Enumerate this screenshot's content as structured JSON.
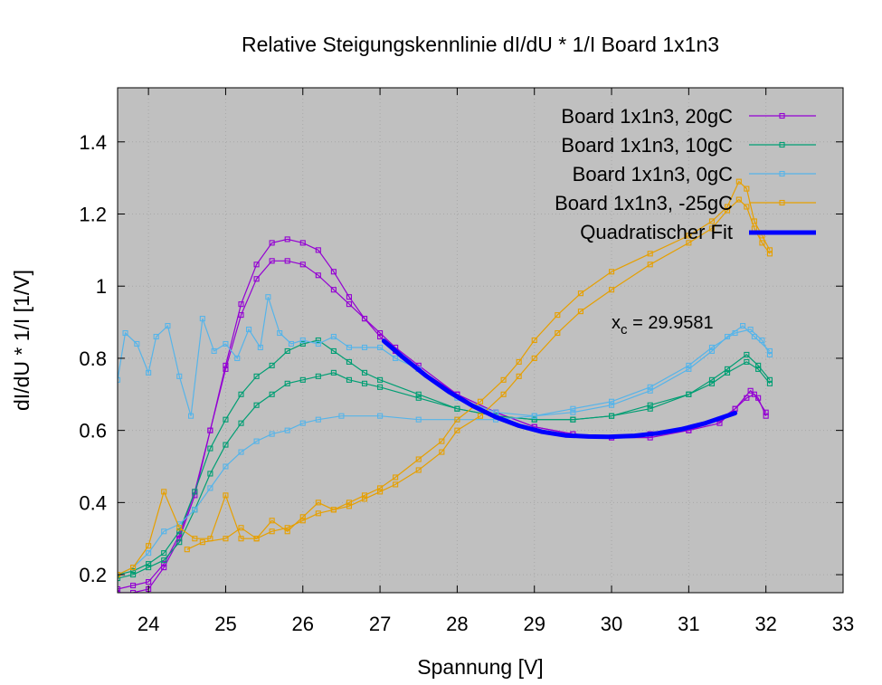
{
  "chart_data": {
    "type": "line",
    "title": "Relative Steigungskennlinie dI/dU * 1/I Board 1x1n3",
    "xlabel": "Spannung [V]",
    "ylabel": "dI/dU * 1/I [1/V]",
    "xlim": [
      23.6,
      33
    ],
    "ylim": [
      0.15,
      1.55
    ],
    "x_ticks": [
      "24",
      "25",
      "26",
      "27",
      "28",
      "29",
      "30",
      "31",
      "32",
      "33"
    ],
    "y_ticks": [
      "0.2",
      "0.4",
      "0.6",
      "0.8",
      "1",
      "1.2",
      "1.4"
    ],
    "grid": true,
    "legend_position": "top-right",
    "series": [
      {
        "name": "Board 1x1n3, 20gC",
        "color": "#9400d3",
        "marker": "square",
        "points": [
          [
            23.6,
            0.15
          ],
          [
            23.8,
            0.15
          ],
          [
            24.0,
            0.16
          ],
          [
            24.2,
            0.22
          ],
          [
            24.4,
            0.3
          ],
          [
            24.6,
            0.42
          ],
          [
            24.8,
            0.6
          ],
          [
            25.0,
            0.78
          ],
          [
            25.2,
            0.95
          ],
          [
            25.4,
            1.06
          ],
          [
            25.6,
            1.12
          ],
          [
            25.8,
            1.13
          ],
          [
            26.0,
            1.12
          ],
          [
            26.2,
            1.1
          ],
          [
            26.4,
            1.04
          ],
          [
            26.6,
            0.97
          ],
          [
            26.8,
            0.91
          ],
          [
            27.0,
            0.86
          ],
          [
            27.2,
            0.82
          ],
          [
            27.5,
            0.77
          ],
          [
            28.0,
            0.7
          ],
          [
            28.5,
            0.65
          ],
          [
            29.0,
            0.61
          ],
          [
            29.5,
            0.59
          ],
          [
            30.0,
            0.58
          ],
          [
            30.5,
            0.59
          ],
          [
            31.0,
            0.6
          ],
          [
            31.4,
            0.63
          ],
          [
            31.6,
            0.66
          ],
          [
            31.8,
            0.71
          ],
          [
            31.9,
            0.69
          ],
          [
            32.0,
            0.64
          ]
        ]
      },
      {
        "name": "Board 1x1n3, 20gC (2)",
        "color": "#9400d3",
        "marker": "square",
        "points": [
          [
            23.6,
            0.16
          ],
          [
            23.8,
            0.17
          ],
          [
            24.0,
            0.18
          ],
          [
            24.2,
            0.23
          ],
          [
            24.4,
            0.31
          ],
          [
            24.6,
            0.43
          ],
          [
            24.8,
            0.6
          ],
          [
            25.0,
            0.77
          ],
          [
            25.2,
            0.92
          ],
          [
            25.4,
            1.02
          ],
          [
            25.6,
            1.07
          ],
          [
            25.8,
            1.07
          ],
          [
            26.0,
            1.06
          ],
          [
            26.2,
            1.03
          ],
          [
            26.4,
            0.99
          ],
          [
            26.6,
            0.95
          ],
          [
            26.8,
            0.91
          ],
          [
            27.0,
            0.87
          ],
          [
            27.2,
            0.83
          ],
          [
            27.5,
            0.78
          ],
          [
            28.0,
            0.7
          ],
          [
            28.5,
            0.65
          ],
          [
            29.0,
            0.61
          ],
          [
            29.5,
            0.59
          ],
          [
            30.0,
            0.58
          ],
          [
            30.5,
            0.58
          ],
          [
            31.0,
            0.6
          ],
          [
            31.4,
            0.62
          ],
          [
            31.6,
            0.66
          ],
          [
            31.75,
            0.69
          ],
          [
            31.85,
            0.7
          ],
          [
            32.0,
            0.65
          ]
        ]
      },
      {
        "name": "Board 1x1n3, 10gC",
        "color": "#009e73",
        "marker": "square",
        "points": [
          [
            23.6,
            0.2
          ],
          [
            23.8,
            0.21
          ],
          [
            24.0,
            0.23
          ],
          [
            24.2,
            0.26
          ],
          [
            24.4,
            0.32
          ],
          [
            24.6,
            0.43
          ],
          [
            24.8,
            0.55
          ],
          [
            25.0,
            0.63
          ],
          [
            25.2,
            0.7
          ],
          [
            25.4,
            0.75
          ],
          [
            25.6,
            0.78
          ],
          [
            25.8,
            0.82
          ],
          [
            26.0,
            0.84
          ],
          [
            26.2,
            0.85
          ],
          [
            26.4,
            0.82
          ],
          [
            26.6,
            0.79
          ],
          [
            26.8,
            0.76
          ],
          [
            27.0,
            0.74
          ],
          [
            27.5,
            0.7
          ],
          [
            28.0,
            0.66
          ],
          [
            28.5,
            0.64
          ],
          [
            29.0,
            0.63
          ],
          [
            29.5,
            0.63
          ],
          [
            30.0,
            0.64
          ],
          [
            30.5,
            0.66
          ],
          [
            31.0,
            0.7
          ],
          [
            31.3,
            0.74
          ],
          [
            31.5,
            0.77
          ],
          [
            31.75,
            0.81
          ],
          [
            31.9,
            0.78
          ],
          [
            32.05,
            0.74
          ]
        ]
      },
      {
        "name": "Board 1x1n3, 10gC (2)",
        "color": "#009e73",
        "marker": "square",
        "points": [
          [
            23.6,
            0.19
          ],
          [
            23.8,
            0.2
          ],
          [
            24.0,
            0.22
          ],
          [
            24.2,
            0.24
          ],
          [
            24.4,
            0.29
          ],
          [
            24.6,
            0.38
          ],
          [
            24.8,
            0.48
          ],
          [
            25.0,
            0.56
          ],
          [
            25.2,
            0.62
          ],
          [
            25.4,
            0.67
          ],
          [
            25.6,
            0.7
          ],
          [
            25.8,
            0.73
          ],
          [
            26.0,
            0.74
          ],
          [
            26.2,
            0.75
          ],
          [
            26.4,
            0.76
          ],
          [
            26.6,
            0.74
          ],
          [
            26.8,
            0.73
          ],
          [
            27.0,
            0.72
          ],
          [
            27.5,
            0.69
          ],
          [
            28.0,
            0.66
          ],
          [
            28.5,
            0.64
          ],
          [
            29.0,
            0.63
          ],
          [
            29.5,
            0.63
          ],
          [
            30.0,
            0.64
          ],
          [
            30.5,
            0.67
          ],
          [
            31.0,
            0.7
          ],
          [
            31.3,
            0.73
          ],
          [
            31.5,
            0.76
          ],
          [
            31.75,
            0.79
          ],
          [
            31.9,
            0.77
          ],
          [
            32.05,
            0.73
          ]
        ]
      },
      {
        "name": "Board 1x1n3, 0gC",
        "color": "#56b4e9",
        "marker": "square",
        "points": [
          [
            23.6,
            0.74
          ],
          [
            23.7,
            0.87
          ],
          [
            23.85,
            0.84
          ],
          [
            24.0,
            0.76
          ],
          [
            24.1,
            0.86
          ],
          [
            24.25,
            0.89
          ],
          [
            24.4,
            0.75
          ],
          [
            24.55,
            0.64
          ],
          [
            24.7,
            0.91
          ],
          [
            24.85,
            0.82
          ],
          [
            25.0,
            0.84
          ],
          [
            25.15,
            0.8
          ],
          [
            25.3,
            0.88
          ],
          [
            25.45,
            0.83
          ],
          [
            25.55,
            0.97
          ],
          [
            25.7,
            0.87
          ],
          [
            25.85,
            0.84
          ],
          [
            26.0,
            0.85
          ],
          [
            26.2,
            0.84
          ],
          [
            26.4,
            0.86
          ],
          [
            26.6,
            0.83
          ],
          [
            26.8,
            0.83
          ],
          [
            27.0,
            0.83
          ],
          [
            27.2,
            0.8
          ],
          [
            27.5,
            0.77
          ],
          [
            28.0,
            0.69
          ],
          [
            28.5,
            0.65
          ],
          [
            29.0,
            0.64
          ],
          [
            29.5,
            0.65
          ],
          [
            30.0,
            0.67
          ],
          [
            30.5,
            0.71
          ],
          [
            31.0,
            0.77
          ],
          [
            31.3,
            0.82
          ],
          [
            31.5,
            0.86
          ],
          [
            31.7,
            0.89
          ],
          [
            31.85,
            0.86
          ],
          [
            32.05,
            0.82
          ]
        ]
      },
      {
        "name": "Board 1x1n3, 0gC (2)",
        "color": "#56b4e9",
        "marker": "square",
        "points": [
          [
            23.6,
            0.2
          ],
          [
            23.8,
            0.22
          ],
          [
            24.0,
            0.26
          ],
          [
            24.2,
            0.32
          ],
          [
            24.4,
            0.34
          ],
          [
            24.6,
            0.38
          ],
          [
            24.8,
            0.44
          ],
          [
            25.0,
            0.5
          ],
          [
            25.2,
            0.54
          ],
          [
            25.4,
            0.57
          ],
          [
            25.6,
            0.59
          ],
          [
            25.8,
            0.6
          ],
          [
            26.0,
            0.62
          ],
          [
            26.2,
            0.63
          ],
          [
            26.5,
            0.64
          ],
          [
            27.0,
            0.64
          ],
          [
            27.5,
            0.63
          ],
          [
            28.0,
            0.63
          ],
          [
            28.5,
            0.63
          ],
          [
            29.0,
            0.64
          ],
          [
            29.5,
            0.66
          ],
          [
            30.0,
            0.68
          ],
          [
            30.5,
            0.72
          ],
          [
            31.0,
            0.78
          ],
          [
            31.3,
            0.83
          ],
          [
            31.6,
            0.87
          ],
          [
            31.8,
            0.88
          ],
          [
            31.95,
            0.85
          ],
          [
            32.05,
            0.81
          ]
        ]
      },
      {
        "name": "Board 1x1n3, -25gC",
        "color": "#e69f00",
        "marker": "square",
        "points": [
          [
            23.6,
            0.2
          ],
          [
            23.8,
            0.22
          ],
          [
            24.0,
            0.28
          ],
          [
            24.2,
            0.43
          ],
          [
            24.4,
            0.33
          ],
          [
            24.6,
            0.3
          ],
          [
            24.8,
            0.3
          ],
          [
            25.0,
            0.42
          ],
          [
            25.2,
            0.3
          ],
          [
            25.4,
            0.3
          ],
          [
            25.6,
            0.35
          ],
          [
            25.8,
            0.32
          ],
          [
            26.0,
            0.36
          ],
          [
            26.2,
            0.4
          ],
          [
            26.4,
            0.38
          ],
          [
            26.6,
            0.4
          ],
          [
            26.8,
            0.42
          ],
          [
            27.0,
            0.44
          ],
          [
            27.2,
            0.47
          ],
          [
            27.5,
            0.52
          ],
          [
            27.8,
            0.57
          ],
          [
            28.0,
            0.63
          ],
          [
            28.3,
            0.68
          ],
          [
            28.6,
            0.74
          ],
          [
            28.8,
            0.79
          ],
          [
            29.0,
            0.85
          ],
          [
            29.3,
            0.92
          ],
          [
            29.6,
            0.98
          ],
          [
            30.0,
            1.04
          ],
          [
            30.5,
            1.09
          ],
          [
            31.0,
            1.14
          ],
          [
            31.3,
            1.18
          ],
          [
            31.5,
            1.22
          ],
          [
            31.65,
            1.29
          ],
          [
            31.75,
            1.27
          ],
          [
            31.85,
            1.18
          ],
          [
            31.95,
            1.14
          ],
          [
            32.05,
            1.1
          ]
        ]
      },
      {
        "name": "Board 1x1n3, -25gC (2)",
        "color": "#e69f00",
        "marker": "square",
        "points": [
          [
            24.5,
            0.27
          ],
          [
            24.7,
            0.29
          ],
          [
            25.0,
            0.3
          ],
          [
            25.2,
            0.33
          ],
          [
            25.4,
            0.3
          ],
          [
            25.6,
            0.32
          ],
          [
            25.8,
            0.33
          ],
          [
            26.0,
            0.35
          ],
          [
            26.2,
            0.37
          ],
          [
            26.4,
            0.38
          ],
          [
            26.6,
            0.39
          ],
          [
            26.8,
            0.41
          ],
          [
            27.0,
            0.43
          ],
          [
            27.2,
            0.45
          ],
          [
            27.5,
            0.49
          ],
          [
            27.8,
            0.54
          ],
          [
            28.0,
            0.6
          ],
          [
            28.3,
            0.64
          ],
          [
            28.6,
            0.7
          ],
          [
            28.8,
            0.75
          ],
          [
            29.0,
            0.8
          ],
          [
            29.3,
            0.87
          ],
          [
            29.6,
            0.93
          ],
          [
            30.0,
            0.99
          ],
          [
            30.5,
            1.06
          ],
          [
            31.0,
            1.12
          ],
          [
            31.3,
            1.16
          ],
          [
            31.5,
            1.21
          ],
          [
            31.65,
            1.24
          ],
          [
            31.75,
            1.22
          ],
          [
            31.85,
            1.16
          ],
          [
            31.95,
            1.12
          ],
          [
            32.05,
            1.09
          ]
        ]
      },
      {
        "name": "Quadratischer Fit",
        "color": "#0000ff",
        "marker": "none",
        "points": [
          [
            27.05,
            0.848
          ],
          [
            27.3,
            0.802
          ],
          [
            27.6,
            0.751
          ],
          [
            27.9,
            0.706
          ],
          [
            28.2,
            0.668
          ],
          [
            28.5,
            0.637
          ],
          [
            28.8,
            0.613
          ],
          [
            29.1,
            0.596
          ],
          [
            29.4,
            0.586
          ],
          [
            29.7,
            0.583
          ],
          [
            29.96,
            0.582
          ],
          [
            30.3,
            0.585
          ],
          [
            30.6,
            0.592
          ],
          [
            30.9,
            0.603
          ],
          [
            31.2,
            0.619
          ],
          [
            31.6,
            0.648
          ]
        ]
      }
    ],
    "legend": [
      {
        "label": "Board 1x1n3, 20gC",
        "color": "#9400d3",
        "marker": "square"
      },
      {
        "label": "Board 1x1n3, 10gC",
        "color": "#009e73",
        "marker": "square"
      },
      {
        "label": "Board 1x1n3, 0gC",
        "color": "#56b4e9",
        "marker": "square"
      },
      {
        "label": "Board 1x1n3, -25gC",
        "color": "#e69f00",
        "marker": "square"
      },
      {
        "label": "Quadratischer Fit",
        "color": "#0000ff",
        "marker": "none"
      }
    ],
    "annotations": [
      {
        "text": "x",
        "subscript": "c",
        "suffix": " = 29.9581",
        "x": 30.0,
        "y": 0.9
      }
    ],
    "background": "#c0c0c0"
  }
}
